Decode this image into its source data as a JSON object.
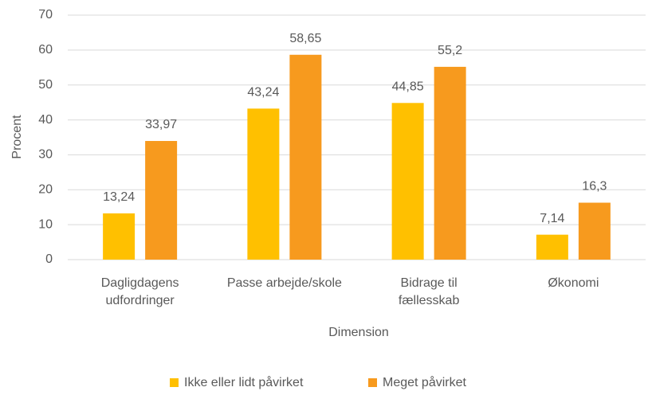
{
  "chart_data": {
    "type": "bar",
    "categories": [
      "Dagligdagens\nudfordringer",
      "Passe arbejde/skole",
      "Bidrage til\nfællesskab",
      "Økonomi"
    ],
    "series": [
      {
        "name": "Ikke eller lidt påvirket",
        "color": "#FFC000",
        "values": [
          13.24,
          43.24,
          44.85,
          7.14
        ],
        "value_labels": [
          "13,24",
          "43,24",
          "44,85",
          "7,14"
        ]
      },
      {
        "name": "Meget påvirket",
        "color": "#F79A1E",
        "values": [
          33.97,
          58.65,
          55.2,
          16.3
        ],
        "value_labels": [
          "33,97",
          "58,65",
          "55,2",
          "16,3"
        ]
      }
    ],
    "x_label": "Dimension",
    "y_label": "Procent",
    "ylim": [
      0,
      70
    ],
    "yticks": [
      0,
      10,
      20,
      30,
      40,
      50,
      60,
      70
    ],
    "grid": true,
    "legend": "bottom"
  }
}
